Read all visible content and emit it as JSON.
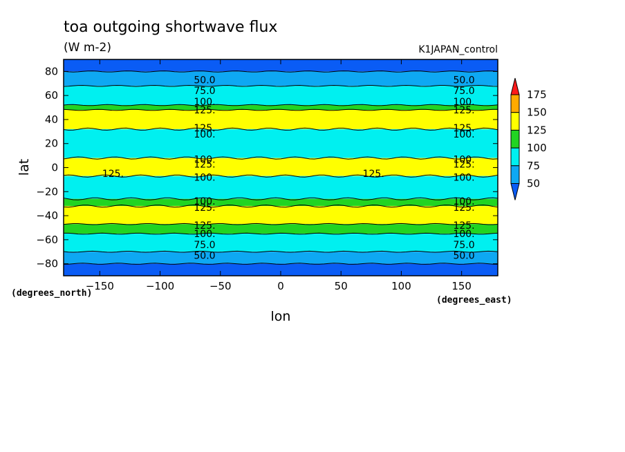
{
  "chart_data": {
    "type": "heatmap",
    "title": "toa outgoing shortwave flux",
    "units": "(W m-2)",
    "run_label": "K1JAPAN_control",
    "xlabel": "lon",
    "ylabel": "lat",
    "x_units": "(degrees_east)",
    "y_units": "(degrees_north)",
    "xlim": [
      -180,
      180
    ],
    "ylim": [
      -90,
      90
    ],
    "x_ticks": [
      -150,
      -100,
      -50,
      0,
      50,
      100,
      150
    ],
    "x_tick_labels": [
      "-150",
      "-100",
      "-50",
      "0",
      "50",
      "100",
      "150"
    ],
    "y_ticks": [
      80,
      60,
      40,
      20,
      0,
      -20,
      -40,
      -60,
      -80
    ],
    "y_tick_labels": [
      "80",
      "60",
      "40",
      "20",
      "0",
      "-20",
      "-40",
      "-60",
      "-80"
    ],
    "contour_levels": [
      50,
      75,
      100,
      125,
      150,
      175
    ],
    "colorbar": {
      "labels": [
        "175",
        "150",
        "125",
        "100",
        "75",
        "50"
      ],
      "bands": [
        {
          "range": "<50",
          "color": "#0a5cf5"
        },
        {
          "range": "50-75",
          "color": "#0ea8f3"
        },
        {
          "range": "75-100",
          "color": "#00f0f0"
        },
        {
          "range": "100-125",
          "color": "#22d422"
        },
        {
          "range": "125-150",
          "color": "#ffff00"
        },
        {
          "range": "150-175",
          "color": "#ffaa00"
        },
        {
          "range": ">175",
          "color": "#ff1a1a"
        }
      ]
    },
    "zonal_bands": [
      {
        "lat": [
          80,
          90
        ],
        "flux": "<50"
      },
      {
        "lat": [
          68,
          80
        ],
        "flux": "50-75"
      },
      {
        "lat": [
          52,
          68
        ],
        "flux": "75-100"
      },
      {
        "lat": [
          48,
          52
        ],
        "flux": "100-125"
      },
      {
        "lat": [
          32,
          48
        ],
        "flux": "125-150"
      },
      {
        "lat": [
          8,
          32
        ],
        "flux": "75-100"
      },
      {
        "lat": [
          -7,
          8
        ],
        "flux": "125-150"
      },
      {
        "lat": [
          -26,
          -7
        ],
        "flux": "75-100"
      },
      {
        "lat": [
          -32,
          -26
        ],
        "flux": "100-125"
      },
      {
        "lat": [
          -47,
          -32
        ],
        "flux": "125-150"
      },
      {
        "lat": [
          -55,
          -47
        ],
        "flux": "100-125"
      },
      {
        "lat": [
          -70,
          -55
        ],
        "flux": "75-100"
      },
      {
        "lat": [
          -80,
          -70
        ],
        "flux": "50-75"
      },
      {
        "lat": [
          -90,
          -80
        ],
        "flux": "<50"
      }
    ],
    "contour_labels": [
      {
        "text": "50.0",
        "lon": -72,
        "lat": 73
      },
      {
        "text": "75.0",
        "lon": -72,
        "lat": 64
      },
      {
        "text": "100.",
        "lon": -72,
        "lat": 55
      },
      {
        "text": "125.",
        "lon": -72,
        "lat": 48
      },
      {
        "text": "125.",
        "lon": -72,
        "lat": 33
      },
      {
        "text": "100.",
        "lon": -72,
        "lat": 28
      },
      {
        "text": "100.",
        "lon": -72,
        "lat": 7
      },
      {
        "text": "125.",
        "lon": -72,
        "lat": 3
      },
      {
        "text": "125.",
        "lon": -148,
        "lat": -5
      },
      {
        "text": "100.",
        "lon": -72,
        "lat": -8
      },
      {
        "text": "100.",
        "lon": -72,
        "lat": -28
      },
      {
        "text": "125.",
        "lon": -72,
        "lat": -33
      },
      {
        "text": "125.",
        "lon": -72,
        "lat": -48
      },
      {
        "text": "100.",
        "lon": -72,
        "lat": -55
      },
      {
        "text": "75.0",
        "lon": -72,
        "lat": -64
      },
      {
        "text": "50.0",
        "lon": -72,
        "lat": -73
      },
      {
        "text": "50.0",
        "lon": 143,
        "lat": 73
      },
      {
        "text": "75.0",
        "lon": 143,
        "lat": 64
      },
      {
        "text": "100.",
        "lon": 143,
        "lat": 55
      },
      {
        "text": "125.",
        "lon": 143,
        "lat": 48
      },
      {
        "text": "125.",
        "lon": 143,
        "lat": 33
      },
      {
        "text": "100.",
        "lon": 143,
        "lat": 28
      },
      {
        "text": "100.",
        "lon": 143,
        "lat": 7
      },
      {
        "text": "125.",
        "lon": 143,
        "lat": 3
      },
      {
        "text": "125.",
        "lon": 68,
        "lat": -5
      },
      {
        "text": "100.",
        "lon": 143,
        "lat": -8
      },
      {
        "text": "100.",
        "lon": 143,
        "lat": -28
      },
      {
        "text": "125.",
        "lon": 143,
        "lat": -33
      },
      {
        "text": "125.",
        "lon": 143,
        "lat": -48
      },
      {
        "text": "100.",
        "lon": 143,
        "lat": -55
      },
      {
        "text": "75.0",
        "lon": 143,
        "lat": -64
      },
      {
        "text": "50.0",
        "lon": 143,
        "lat": -73
      }
    ]
  }
}
